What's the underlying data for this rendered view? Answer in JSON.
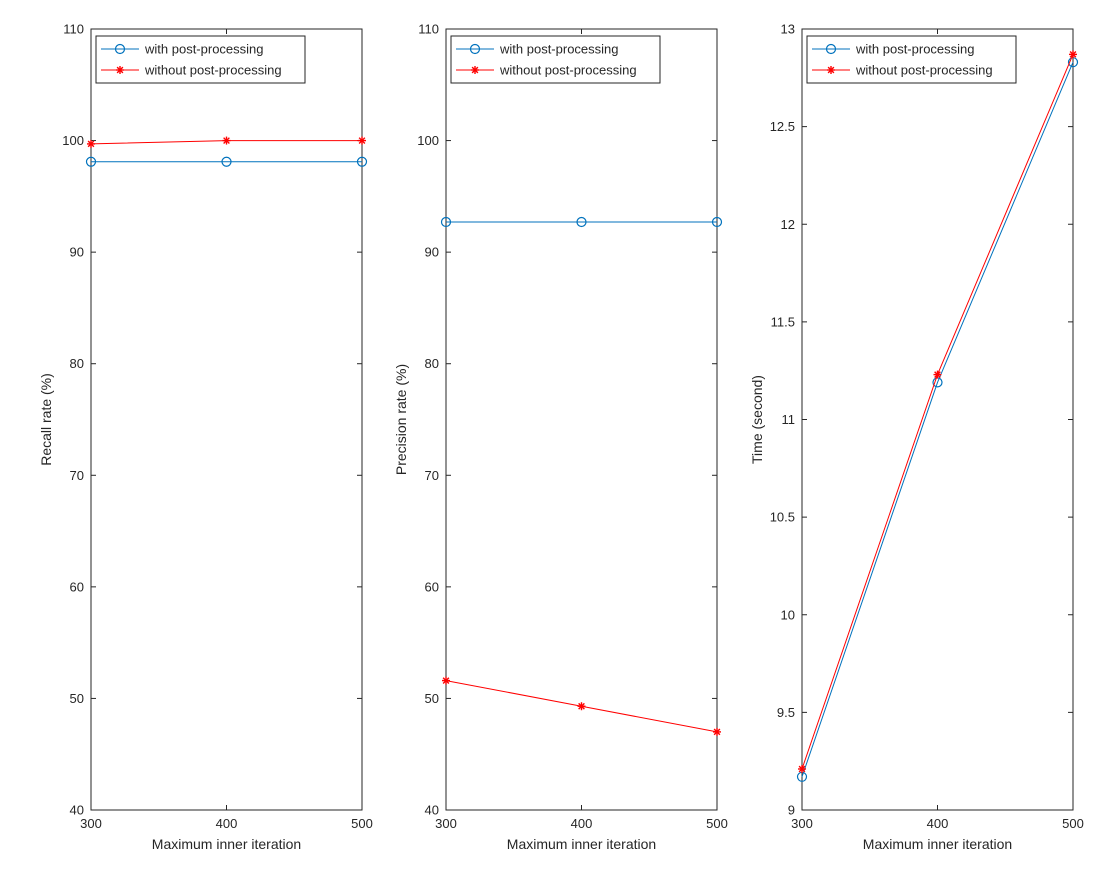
{
  "chart_data": [
    {
      "type": "line",
      "title": "",
      "xlabel": "Maximum inner iteration",
      "ylabel": "Recall rate (%)",
      "x": [
        300,
        400,
        500
      ],
      "xticks": [
        "300",
        "400",
        "500"
      ],
      "xlim": [
        300,
        500
      ],
      "ylim": [
        40,
        110
      ],
      "yticks": [
        "40",
        "50",
        "60",
        "70",
        "80",
        "90",
        "100",
        "110"
      ],
      "grid": false,
      "legend_position": "top-left",
      "series": [
        {
          "name": "with post-processing",
          "values": [
            98.1,
            98.1,
            98.1
          ],
          "color": "#0072BD",
          "marker": "circle"
        },
        {
          "name": "without post-processing",
          "values": [
            99.7,
            100.0,
            100.0
          ],
          "color": "#FF0000",
          "marker": "asterisk"
        }
      ]
    },
    {
      "type": "line",
      "title": "",
      "xlabel": "Maximum inner iteration",
      "ylabel": "Precision rate (%)",
      "x": [
        300,
        400,
        500
      ],
      "xticks": [
        "300",
        "400",
        "500"
      ],
      "xlim": [
        300,
        500
      ],
      "ylim": [
        40,
        110
      ],
      "yticks": [
        "40",
        "50",
        "60",
        "70",
        "80",
        "90",
        "100",
        "110"
      ],
      "grid": false,
      "legend_position": "top-left",
      "series": [
        {
          "name": "with post-processing",
          "values": [
            92.7,
            92.7,
            92.7
          ],
          "color": "#0072BD",
          "marker": "circle"
        },
        {
          "name": "without post-processing",
          "values": [
            51.6,
            49.3,
            47.0
          ],
          "color": "#FF0000",
          "marker": "asterisk"
        }
      ]
    },
    {
      "type": "line",
      "title": "",
      "xlabel": "Maximum inner iteration",
      "ylabel": "Time (second)",
      "x": [
        300,
        400,
        500
      ],
      "xticks": [
        "300",
        "400",
        "500"
      ],
      "xlim": [
        300,
        500
      ],
      "ylim": [
        9,
        13
      ],
      "yticks": [
        "9",
        "9.5",
        "10",
        "10.5",
        "11",
        "11.5",
        "12",
        "12.5",
        "13"
      ],
      "grid": false,
      "legend_position": "top-left",
      "series": [
        {
          "name": "with post-processing",
          "values": [
            9.17,
            11.19,
            12.83
          ],
          "color": "#0072BD",
          "marker": "circle"
        },
        {
          "name": "without post-processing",
          "values": [
            9.21,
            11.23,
            12.87
          ],
          "color": "#FF0000",
          "marker": "asterisk"
        }
      ]
    }
  ]
}
